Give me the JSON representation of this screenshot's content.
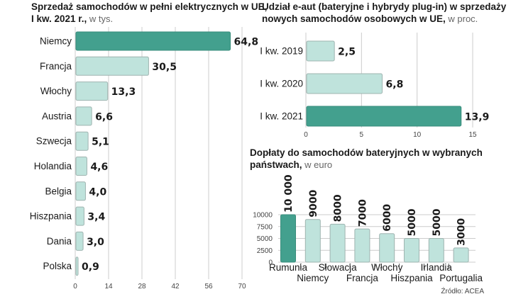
{
  "colors": {
    "highlight": "#43a08e",
    "bar": "#bfe3dc",
    "bar_stroke": "#9fb4b0",
    "grid": "#cccccc"
  },
  "source": "Źródło: ACEA",
  "chart_data": [
    {
      "type": "bar",
      "orientation": "horizontal",
      "title_line1": "Sprzedaż samochodów w pełni elektrycznych w UE,",
      "title_line2": "I kw. 2021 r.,",
      "title_unit": " w tys.",
      "categories": [
        "Niemcy",
        "Francja",
        "Włochy",
        "Austria",
        "Szwecja",
        "Holandia",
        "Belgia",
        "Hiszpania",
        "Dania",
        "Polska"
      ],
      "values": [
        64.8,
        30.5,
        13.3,
        6.6,
        5.1,
        4.6,
        4.0,
        3.4,
        3.0,
        0.9
      ],
      "value_labels": [
        "64,8",
        "30,5",
        "13,3",
        "6,6",
        "5,1",
        "4,6",
        "4,0",
        "3,4",
        "3,0",
        "0,9"
      ],
      "highlight_index": 0,
      "xlim": [
        0,
        70
      ],
      "xticks": [
        0,
        14,
        28,
        42,
        56,
        70
      ],
      "xtick_labels": [
        "0",
        "14",
        "28",
        "42",
        "56",
        "70"
      ]
    },
    {
      "type": "bar",
      "orientation": "horizontal",
      "title_line1": "Udział e-aut (bateryjne i hybrydy plug-in) w sprzedaży",
      "title_line2": "nowych samochodów osobowych w UE,",
      "title_unit": " w proc.",
      "categories": [
        "I kw. 2019",
        "I kw. 2020",
        "I kw. 2021"
      ],
      "values": [
        2.5,
        6.8,
        13.9
      ],
      "value_labels": [
        "2,5",
        "6,8",
        "13,9"
      ],
      "highlight_index": 2,
      "xlim": [
        0,
        15
      ],
      "xticks": [
        0,
        5,
        10,
        15
      ],
      "xtick_labels": [
        "0",
        "5",
        "10",
        "15"
      ]
    },
    {
      "type": "bar",
      "orientation": "vertical",
      "title_line1": "Dopłaty do samochodów bateryjnych w wybranych",
      "title_line2": "państwach,",
      "title_unit": " w euro",
      "categories": [
        "Rumunia",
        "Niemcy",
        "Słowacja",
        "Francja",
        "Włochy",
        "Hiszpania",
        "Irlandia",
        "Portugalia"
      ],
      "values": [
        10000,
        9000,
        8000,
        7000,
        6000,
        5000,
        5000,
        3000
      ],
      "value_labels": [
        "10 000",
        "9000",
        "8000",
        "7000",
        "6000",
        "5000",
        "5000",
        "3000"
      ],
      "highlight_index": 0,
      "ylim": [
        0,
        10000
      ],
      "yticks": [
        0,
        2500,
        5000,
        7500,
        10000
      ],
      "ytick_labels": [
        "0",
        "2500",
        "5000",
        "7500",
        "10000"
      ]
    }
  ]
}
